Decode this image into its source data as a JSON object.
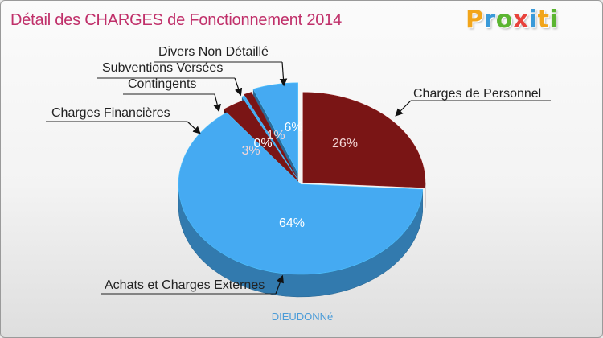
{
  "chart_data": {
    "type": "pie",
    "title": "Détail des CHARGES de Fonctionnement 2014",
    "location": "DIEUDONNé",
    "slices": [
      {
        "label": "Charges de Personnel",
        "value": 26,
        "pct_label": "26%",
        "color": "#7a1515"
      },
      {
        "label": "Achats et Charges Externes",
        "value": 64,
        "pct_label": "64%",
        "color": "#45aaf2"
      },
      {
        "label": "Charges Financières",
        "value": 3,
        "pct_label": "3%",
        "color": "#7a1515"
      },
      {
        "label": "Contingents",
        "value": 0.4,
        "pct_label": "0%",
        "color": "#45aaf2"
      },
      {
        "label": "Subventions Versées",
        "value": 1,
        "pct_label": "1%",
        "color": "#7a1515"
      },
      {
        "label": "Divers Non Détaillé",
        "value": 6,
        "pct_label": "6%",
        "color": "#45aaf2"
      }
    ]
  },
  "brand": {
    "letters": [
      "P",
      "r",
      "o",
      "x",
      "i",
      "t",
      "i"
    ],
    "colors": [
      "#f2a51a",
      "#3a9ad9",
      "#5bb531",
      "#e8423c",
      "#3a9ad9",
      "#f2a51a",
      "#5bb531"
    ]
  }
}
